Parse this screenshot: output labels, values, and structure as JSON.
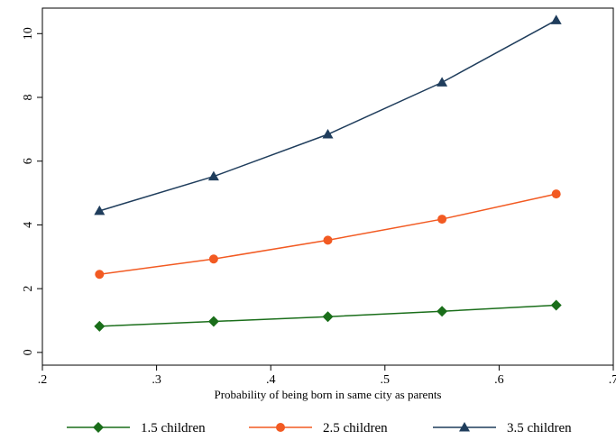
{
  "chart_data": {
    "type": "line",
    "title": "",
    "xlabel": "Probability of being born in same city as parents",
    "ylabel": "",
    "x": [
      0.25,
      0.35,
      0.45,
      0.55,
      0.65
    ],
    "xlim": [
      0.2,
      0.7
    ],
    "ylim": [
      -0.4,
      10.8
    ],
    "x_ticks": [
      0.2,
      0.3,
      0.4,
      0.5,
      0.6,
      0.7
    ],
    "x_tick_labels": [
      ".2",
      ".3",
      ".4",
      ".5",
      ".6",
      ".7"
    ],
    "y_ticks": [
      0,
      2,
      4,
      6,
      8,
      10
    ],
    "y_tick_labels": [
      "0",
      "2",
      "4",
      "6",
      "8",
      "10"
    ],
    "grid": false,
    "legend_position": "bottom",
    "series": [
      {
        "name": "1.5 children",
        "values": [
          0.82,
          0.97,
          1.12,
          1.29,
          1.48
        ],
        "color": "#1a6e1a",
        "marker": "diamond"
      },
      {
        "name": "2.5 children",
        "values": [
          2.45,
          2.93,
          3.52,
          4.18,
          4.97
        ],
        "color": "#f25a22",
        "marker": "circle"
      },
      {
        "name": "3.5 children",
        "values": [
          4.44,
          5.52,
          6.84,
          8.47,
          10.42
        ],
        "color": "#1f3d5c",
        "marker": "triangle"
      }
    ]
  }
}
